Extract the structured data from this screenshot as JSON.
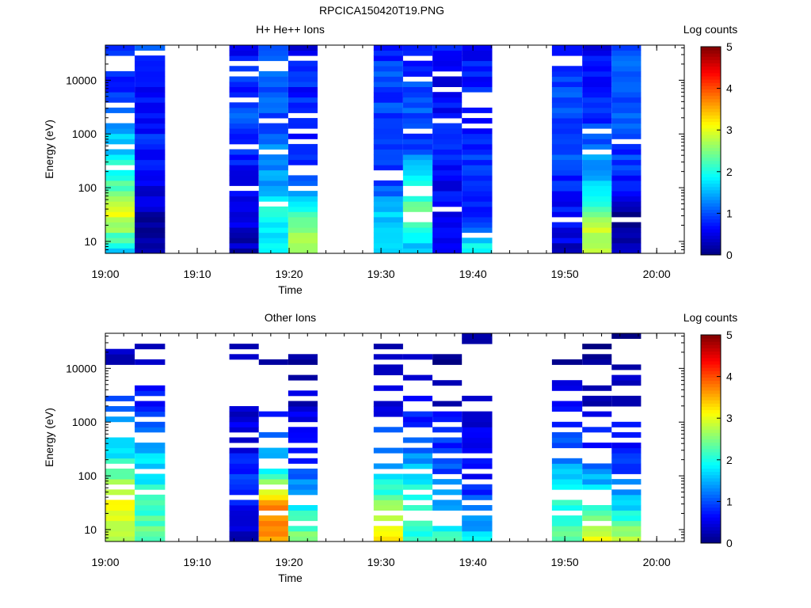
{
  "figure_title": "RPCICA150420T19.PNG",
  "colorbar": {
    "label": "Log counts",
    "min": 0,
    "max": 5,
    "ticks": [
      0,
      1,
      2,
      3,
      4,
      5
    ],
    "colormap": "jet"
  },
  "chart_data": [
    {
      "type": "heatmap",
      "title": "H+ He++ Ions",
      "xlabel": "Time",
      "ylabel": "Energy (eV)",
      "x_ticks": [
        "19:00",
        "19:10",
        "19:20",
        "19:30",
        "19:40",
        "19:50",
        "20:00"
      ],
      "y_ticks": [
        "10",
        "100",
        "1000",
        "10000"
      ],
      "y_scale": "log",
      "ylim": [
        6,
        45000
      ],
      "time_range": [
        "19:00",
        "20:03"
      ],
      "columns": [
        {
          "start": "19:00.0",
          "end": "19:03.2",
          "low": [
            1.8,
            3.0,
            2.2,
            1.7,
            1.3,
            0.8,
            0.7
          ]
        },
        {
          "start": "19:03.2",
          "end": "19:06.5",
          "low": [
            0.1,
            0.2,
            0.6,
            0.8,
            0.7,
            0.6,
            0.9
          ]
        },
        {
          "start": "19:13.5",
          "end": "19:16.7",
          "low": [
            0.3,
            0.4,
            0.6,
            0.8,
            1.0,
            0.8,
            0.6
          ]
        },
        {
          "start": "19:16.7",
          "end": "19:19.9",
          "low": [
            1.8,
            2.0,
            1.5,
            1.2,
            1.0,
            1.1,
            0.9
          ]
        },
        {
          "start": "19:19.9",
          "end": "19:23.1",
          "low": [
            2.8,
            2.3,
            1.2,
            0.8,
            0.7,
            0.8,
            0.6
          ]
        },
        {
          "start": "19:29.2",
          "end": "19:32.4",
          "low": [
            1.6,
            1.7,
            1.0,
            0.8,
            0.9,
            1.0,
            0.8
          ]
        },
        {
          "start": "19:32.4",
          "end": "19:35.6",
          "low": [
            1.5,
            2.4,
            1.9,
            1.0,
            1.0,
            0.9,
            0.8
          ]
        },
        {
          "start": "19:35.6",
          "end": "19:38.8",
          "low": [
            0.7,
            0.6,
            0.6,
            0.8,
            0.7,
            0.6,
            0.7
          ]
        },
        {
          "start": "19:38.8",
          "end": "19:42.1",
          "low": [
            2.0,
            0.8,
            0.9,
            0.8,
            0.7,
            0.8,
            0.6
          ]
        },
        {
          "start": "19:48.6",
          "end": "19:51.9",
          "low": [
            0.4,
            0.6,
            0.8,
            1.0,
            1.0,
            0.9,
            0.7
          ]
        },
        {
          "start": "19:51.9",
          "end": "19:55.1",
          "low": [
            3.0,
            2.6,
            1.6,
            1.2,
            0.8,
            0.6,
            0.6
          ]
        },
        {
          "start": "19:55.1",
          "end": "19:58.3",
          "low": [
            0.5,
            0.0,
            0.8,
            0.9,
            1.0,
            1.2,
            0.9
          ]
        }
      ]
    },
    {
      "type": "heatmap",
      "title": "Other Ions",
      "xlabel": "Time",
      "ylabel": "Energy (eV)",
      "x_ticks": [
        "19:00",
        "19:10",
        "19:20",
        "19:30",
        "19:40",
        "19:50",
        "20:00"
      ],
      "y_ticks": [
        "10",
        "100",
        "1000",
        "10000"
      ],
      "y_scale": "log",
      "ylim": [
        6,
        45000
      ],
      "time_range": [
        "19:00",
        "20:03"
      ],
      "columns": [
        {
          "start": "19:00.0",
          "end": "19:03.2",
          "low": [
            2.8,
            3.2,
            2.2,
            1.5,
            1.0,
            0.5,
            0.2
          ]
        },
        {
          "start": "19:03.2",
          "end": "19:06.5",
          "low": [
            2.4,
            2.2,
            1.8,
            1.3,
            0.8,
            0.4,
            0.3
          ]
        },
        {
          "start": "19:13.5",
          "end": "19:16.7",
          "low": [
            0.2,
            0.6,
            0.8,
            0.5,
            0.3,
            0.2,
            0.1
          ]
        },
        {
          "start": "19:16.7",
          "end": "19:19.9",
          "low": [
            3.6,
            3.8,
            2.0,
            1.0,
            0.5,
            0.3,
            0.2
          ]
        },
        {
          "start": "19:19.9",
          "end": "19:23.1",
          "low": [
            2.5,
            1.8,
            1.0,
            0.6,
            0.4,
            0.2,
            0.1
          ]
        },
        {
          "start": "19:29.2",
          "end": "19:32.4",
          "low": [
            3.4,
            2.5,
            1.6,
            1.0,
            0.5,
            0.2,
            0.1
          ]
        },
        {
          "start": "19:32.4",
          "end": "19:35.6",
          "low": [
            2.0,
            2.2,
            1.6,
            1.0,
            0.6,
            0.3,
            0.2
          ]
        },
        {
          "start": "19:35.6",
          "end": "19:38.8",
          "low": [
            2.1,
            1.4,
            1.0,
            0.8,
            0.4,
            0.2,
            0.1
          ]
        },
        {
          "start": "19:38.8",
          "end": "19:42.1",
          "low": [
            1.8,
            1.0,
            0.7,
            0.5,
            0.3,
            0.2,
            0.1
          ]
        },
        {
          "start": "19:48.6",
          "end": "19:51.9",
          "low": [
            2.3,
            2.0,
            1.5,
            0.9,
            0.5,
            0.2,
            0.1
          ]
        },
        {
          "start": "19:51.9",
          "end": "19:55.1",
          "low": [
            3.1,
            2.2,
            1.3,
            0.7,
            0.4,
            0.2,
            0.1
          ]
        },
        {
          "start": "19:55.1",
          "end": "19:58.3",
          "low": [
            2.9,
            1.6,
            1.0,
            0.6,
            0.4,
            0.2,
            0.1
          ]
        }
      ]
    }
  ]
}
